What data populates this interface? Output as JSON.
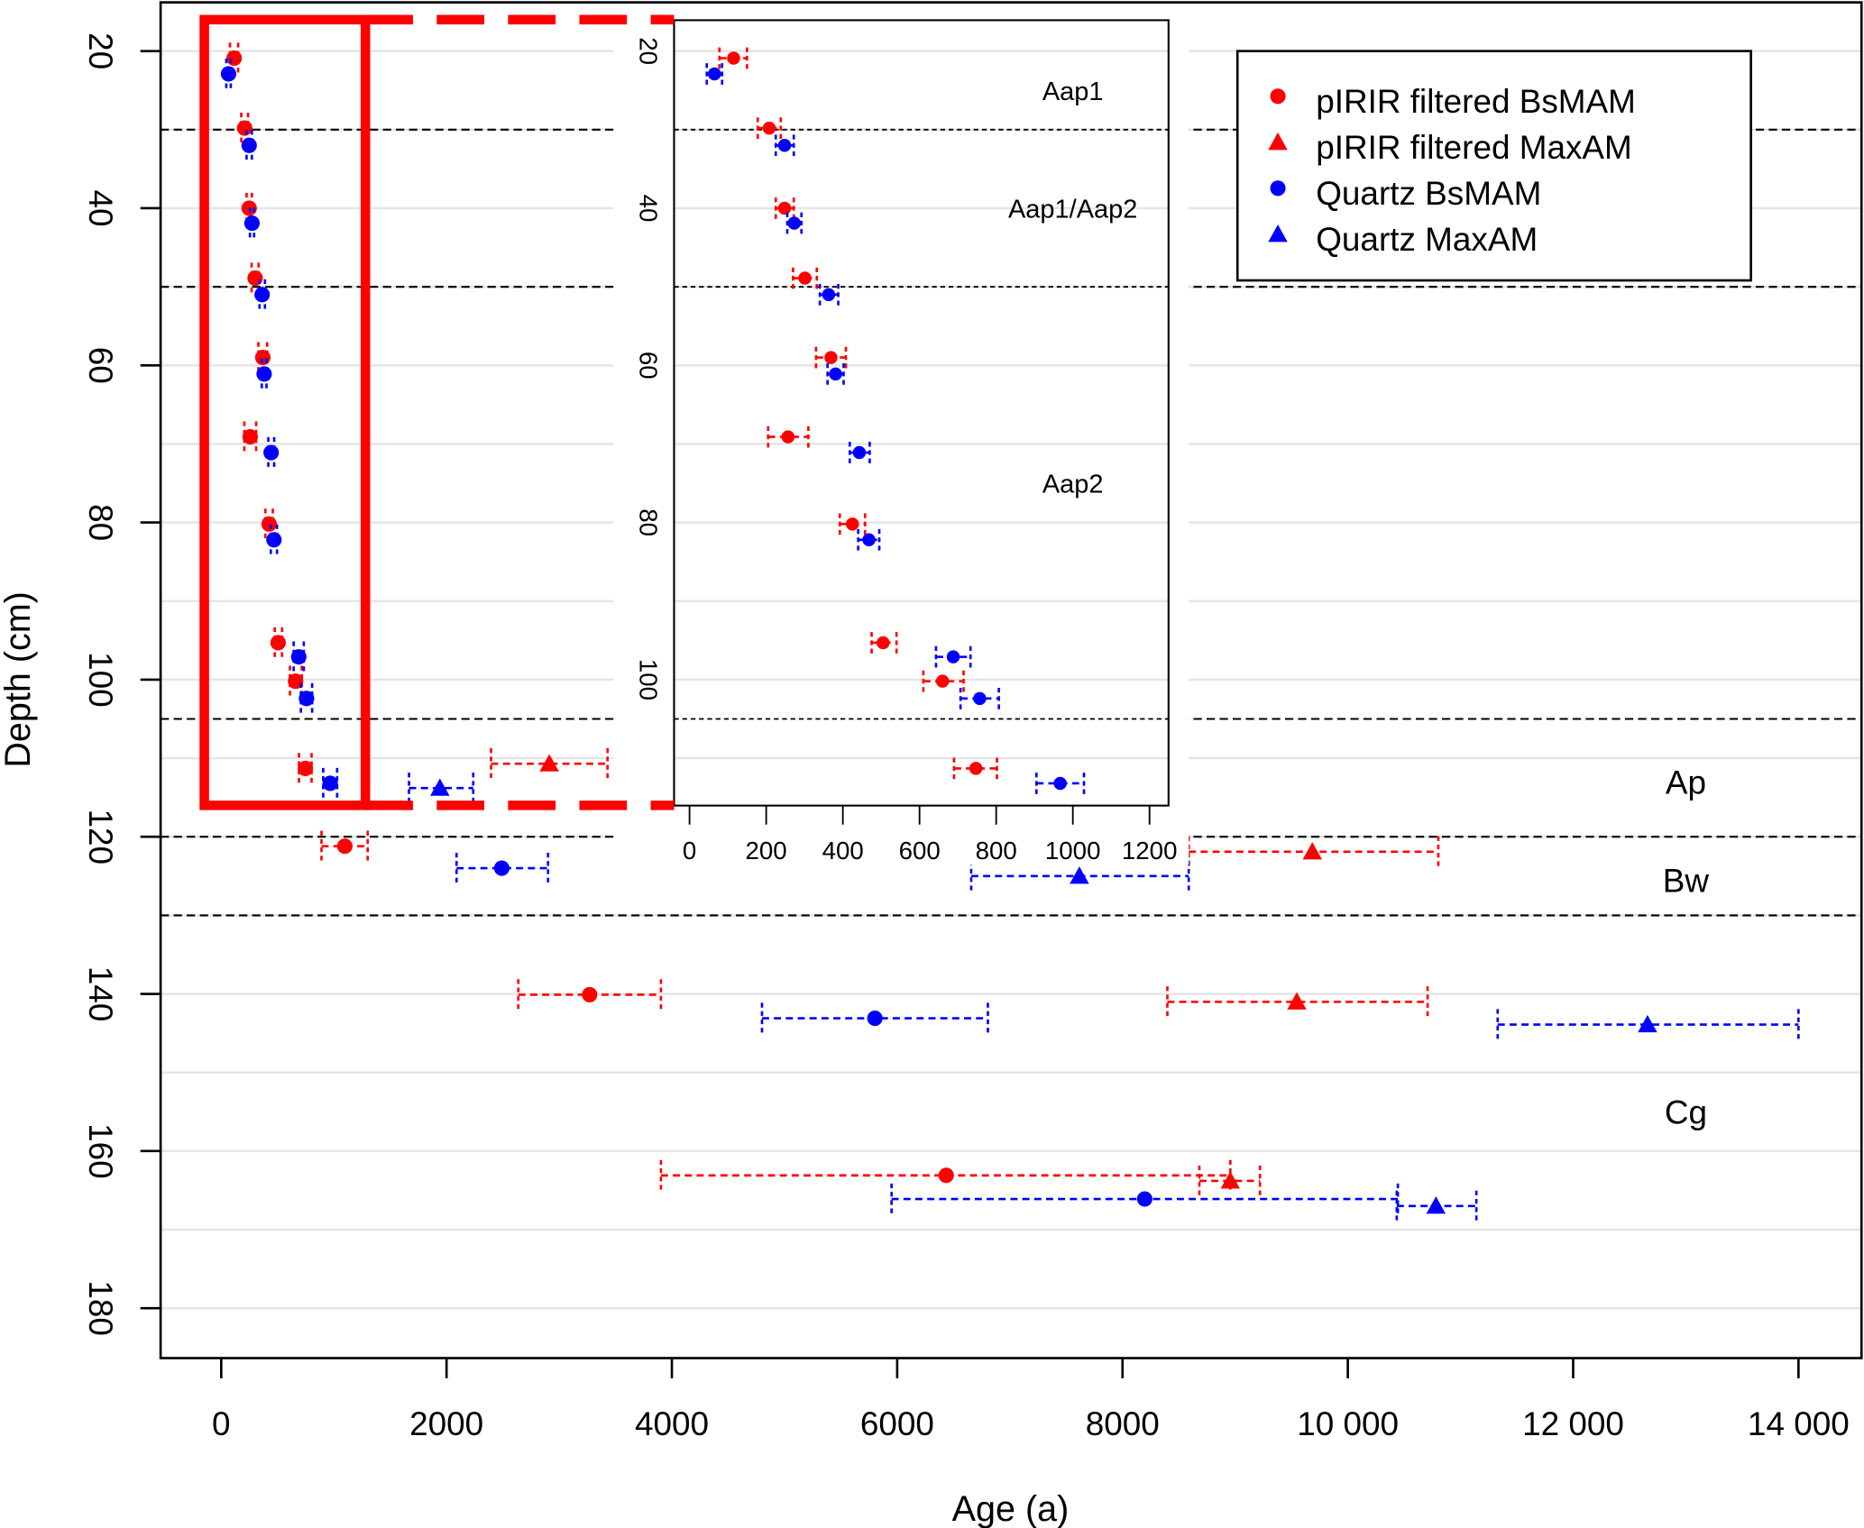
{
  "chart_data": {
    "type": "scatter",
    "xlabel": "Age (a)",
    "ylabel": "Depth (cm)",
    "xlim": [
      0,
      14000
    ],
    "ylim": [
      180,
      20
    ],
    "x_ticks": [
      0,
      2000,
      4000,
      6000,
      8000,
      10000,
      12000,
      14000
    ],
    "x_tick_labels": [
      "0",
      "2000",
      "4000",
      "6000",
      "8000",
      "10 000",
      "12 000",
      "14 000"
    ],
    "y_ticks": [
      20,
      40,
      60,
      80,
      100,
      120,
      140,
      160,
      180
    ],
    "y_tick_labels": [
      "20",
      "40",
      "60",
      "80",
      "100",
      "120",
      "140",
      "160",
      "180"
    ],
    "grid": true,
    "horizon_boundaries": [
      30,
      50,
      105,
      120,
      130
    ],
    "horizon_labels": [
      {
        "text": "Ap",
        "age": 13000,
        "depth": 113
      },
      {
        "text": "Bw",
        "age": 13000,
        "depth": 125.5
      },
      {
        "text": "Cg",
        "age": 13000,
        "depth": 155
      }
    ],
    "legend": {
      "placement": "top-right",
      "entries": [
        "pIRIR filtered BsMAM",
        "pIRIR filtered MaxAM",
        "Quartz BsMAM",
        "Quartz MaxAM"
      ]
    },
    "series": [
      {
        "name": "pIRIR filtered BsMAM",
        "color": "#ff0000",
        "marker": "circle",
        "points": [
          {
            "age": 115,
            "depth": 20.9,
            "lo": 78,
            "hi": 150
          },
          {
            "age": 208,
            "depth": 29.8,
            "lo": 178,
            "hi": 238
          },
          {
            "age": 248,
            "depth": 40.0,
            "lo": 225,
            "hi": 272
          },
          {
            "age": 301,
            "depth": 48.9,
            "lo": 270,
            "hi": 332
          },
          {
            "age": 369,
            "depth": 59.0,
            "lo": 330,
            "hi": 408
          },
          {
            "age": 257,
            "depth": 69.1,
            "lo": 205,
            "hi": 310
          },
          {
            "age": 425,
            "depth": 80.2,
            "lo": 392,
            "hi": 458
          },
          {
            "age": 505,
            "depth": 95.3,
            "lo": 475,
            "hi": 540
          },
          {
            "age": 660,
            "depth": 100.2,
            "lo": 610,
            "hi": 715
          },
          {
            "age": 747,
            "depth": 111.3,
            "lo": 690,
            "hi": 802
          },
          {
            "age": 1097,
            "depth": 121.2,
            "lo": 890,
            "hi": 1300
          },
          {
            "age": 3270,
            "depth": 140.1,
            "lo": 2637,
            "hi": 3903
          },
          {
            "age": 6435,
            "depth": 163.1,
            "lo": 3903,
            "hi": 8957
          }
        ]
      },
      {
        "name": "pIRIR filtered MaxAM",
        "color": "#ff0000",
        "marker": "triangle",
        "points": [
          {
            "age": 2912,
            "depth": 110.7,
            "lo": 2395,
            "hi": 3429
          },
          {
            "age": 9685,
            "depth": 121.9,
            "lo": 8588,
            "hi": 10803
          },
          {
            "age": 9547,
            "depth": 141.0,
            "lo": 8398,
            "hi": 10708
          },
          {
            "age": 8957,
            "depth": 163.8,
            "lo": 8682,
            "hi": 9220
          }
        ]
      },
      {
        "name": "Quartz BsMAM",
        "color": "#0000ff",
        "marker": "circle",
        "points": [
          {
            "age": 65,
            "depth": 22.9,
            "lo": 45,
            "hi": 85
          },
          {
            "age": 248,
            "depth": 32.0,
            "lo": 225,
            "hi": 272
          },
          {
            "age": 273,
            "depth": 41.9,
            "lo": 255,
            "hi": 292
          },
          {
            "age": 363,
            "depth": 51.0,
            "lo": 340,
            "hi": 388
          },
          {
            "age": 381,
            "depth": 61.1,
            "lo": 360,
            "hi": 402
          },
          {
            "age": 443,
            "depth": 71.1,
            "lo": 418,
            "hi": 470
          },
          {
            "age": 468,
            "depth": 82.2,
            "lo": 440,
            "hi": 495
          },
          {
            "age": 688,
            "depth": 97.1,
            "lo": 643,
            "hi": 733
          },
          {
            "age": 757,
            "depth": 102.4,
            "lo": 707,
            "hi": 807
          },
          {
            "age": 967,
            "depth": 113.2,
            "lo": 905,
            "hi": 1029
          },
          {
            "age": 2490,
            "depth": 124.0,
            "lo": 2089,
            "hi": 2901
          },
          {
            "age": 5802,
            "depth": 143.1,
            "lo": 4800,
            "hi": 6805
          },
          {
            "age": 8197,
            "depth": 166.1,
            "lo": 5950,
            "hi": 10444
          }
        ]
      },
      {
        "name": "Quartz MaxAM",
        "color": "#0000ff",
        "marker": "triangle",
        "points": [
          {
            "age": 1941,
            "depth": 113.8,
            "lo": 1667,
            "hi": 2237
          },
          {
            "age": 7617,
            "depth": 125.0,
            "lo": 6657,
            "hi": 8588
          },
          {
            "age": 12660,
            "depth": 143.9,
            "lo": 11330,
            "hi": 14000
          },
          {
            "age": 10782,
            "depth": 167.0,
            "lo": 10434,
            "hi": 11141
          }
        ]
      }
    ],
    "inset": {
      "xlim": [
        0,
        1200
      ],
      "ylim": [
        116,
        16
      ],
      "x_ticks": [
        0,
        200,
        400,
        600,
        800,
        1000,
        1200
      ],
      "x_tick_labels": [
        "0",
        "200",
        "400",
        "600",
        "800",
        "1000",
        "1200"
      ],
      "y_ticks": [
        20,
        40,
        60,
        80,
        100
      ],
      "y_tick_labels": [
        "20",
        "40",
        "60",
        "80",
        "100"
      ],
      "horizon_boundaries": [
        30,
        50,
        105
      ],
      "horizon_labels": [
        {
          "text": "Aap1",
          "age": 1000,
          "depth": 25
        },
        {
          "text": "Aap1/Aap2",
          "age": 1000,
          "depth": 40
        },
        {
          "text": "Aap2",
          "age": 1000,
          "depth": 75
        }
      ],
      "zoom_region": {
        "age_range": [
          -150,
          1280
        ],
        "depth_range": [
          16,
          116
        ]
      }
    }
  }
}
